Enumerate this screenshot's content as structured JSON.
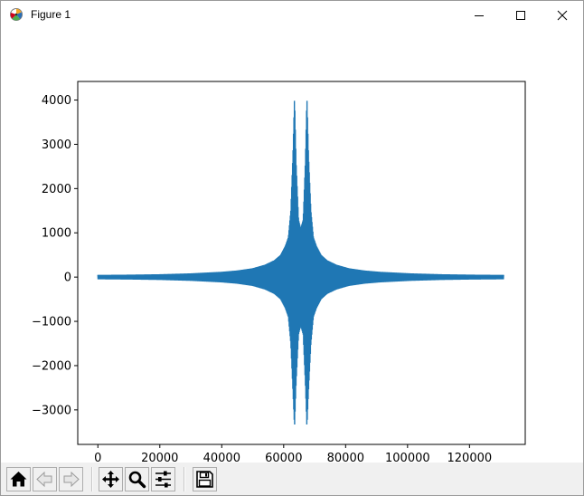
{
  "window": {
    "title": "Figure 1",
    "icon": "matplotlib-figure-icon",
    "controls": {
      "minimize_icon": "minimize-icon",
      "maximize_icon": "maximize-icon",
      "close_icon": "close-icon"
    }
  },
  "toolbar": {
    "buttons": [
      {
        "name": "home-button",
        "icon": "home-icon"
      },
      {
        "name": "back-button",
        "icon": "back-arrow-icon"
      },
      {
        "name": "forward-button",
        "icon": "forward-arrow-icon"
      },
      {
        "name": "pan-button",
        "icon": "move-arrows-icon"
      },
      {
        "name": "zoom-button",
        "icon": "magnifier-icon"
      },
      {
        "name": "configure-subplots-button",
        "icon": "sliders-icon"
      },
      {
        "name": "save-button",
        "icon": "floppy-disk-icon"
      }
    ]
  },
  "chart_data": {
    "type": "line",
    "title": "",
    "xlabel": "",
    "ylabel": "",
    "xlim": [
      -6500,
      138000
    ],
    "ylim": [
      -3780,
      4420
    ],
    "xticks": [
      0,
      20000,
      40000,
      60000,
      80000,
      100000,
      120000
    ],
    "xtick_labels": [
      "0",
      "20000",
      "40000",
      "60000",
      "80000",
      "100000",
      "120000"
    ],
    "yticks": [
      -3000,
      -2000,
      -1000,
      0,
      1000,
      2000,
      3000,
      4000
    ],
    "ytick_labels": [
      "−3000",
      "−2000",
      "−1000",
      "0",
      "1000",
      "2000",
      "3000",
      "4000"
    ],
    "grid": false,
    "legend": "none",
    "color": "#1f77b4",
    "series": [
      {
        "x": [
          0,
          10000,
          20000,
          30000,
          40000,
          45000,
          50000,
          54000,
          57000,
          59000,
          60500,
          61500,
          62300,
          63000,
          63500,
          64000,
          64800,
          65500,
          66300,
          67000,
          67500,
          68000,
          68800,
          69600,
          70600,
          72100,
          74000,
          77000,
          81000,
          86000,
          91000,
          101000,
          111000,
          121000,
          131000
        ],
        "upper": [
          50,
          55,
          65,
          85,
          120,
          150,
          200,
          280,
          380,
          500,
          700,
          900,
          1500,
          2800,
          4080,
          2600,
          1300,
          1100,
          1300,
          2600,
          4080,
          2800,
          1500,
          900,
          700,
          500,
          380,
          280,
          200,
          150,
          120,
          85,
          65,
          55,
          50
        ],
        "lower": [
          -50,
          -55,
          -65,
          -85,
          -120,
          -150,
          -200,
          -280,
          -380,
          -500,
          -700,
          -900,
          -1500,
          -2600,
          -3400,
          -2400,
          -1300,
          -1100,
          -1300,
          -2400,
          -3400,
          -2600,
          -1500,
          -900,
          -700,
          -500,
          -380,
          -280,
          -200,
          -150,
          -120,
          -85,
          -65,
          -55,
          -50
        ]
      }
    ]
  }
}
